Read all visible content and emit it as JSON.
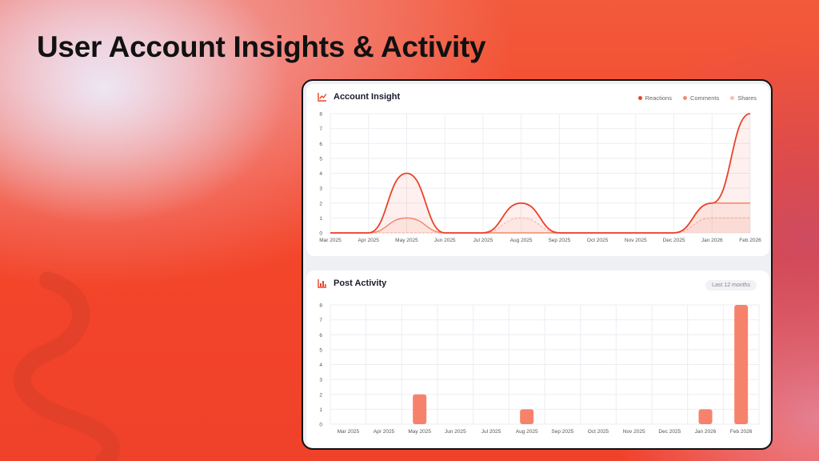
{
  "page": {
    "title": "User Account Insights & Activity"
  },
  "insight_card": {
    "title": "Account Insight",
    "icon": "line-chart-icon",
    "legend": [
      {
        "label": "Reactions",
        "color": "#e9432b"
      },
      {
        "label": "Comments",
        "color": "#f58a74"
      },
      {
        "label": "Shares",
        "color": "#f9c0b3"
      }
    ]
  },
  "activity_card": {
    "title": "Post Activity",
    "icon": "bar-chart-icon",
    "period": "Last 12 months"
  },
  "chart_data": [
    {
      "type": "area",
      "title": "Account Insight",
      "categories": [
        "Mar 2025",
        "Apr 2025",
        "May 2025",
        "Jun 2025",
        "Jul 2025",
        "Aug 2025",
        "Sep 2025",
        "Oct 2025",
        "Nov 2025",
        "Dec 2025",
        "Jan 2026",
        "Feb 2026"
      ],
      "yticks": [
        0,
        1,
        2,
        3,
        4,
        5,
        6,
        7,
        8
      ],
      "ylim": [
        0,
        8
      ],
      "grid": true,
      "legend_position": "top-right",
      "series": [
        {
          "name": "Reactions",
          "values": [
            0,
            0,
            4,
            0,
            0,
            2,
            0,
            0,
            0,
            0,
            2,
            8
          ],
          "color": "#e9432b"
        },
        {
          "name": "Comments",
          "values": [
            0,
            0,
            1,
            0,
            0,
            0,
            0,
            0,
            0,
            0,
            2,
            2
          ],
          "color": "#f58a74"
        },
        {
          "name": "Shares",
          "values": [
            0,
            0,
            0,
            0,
            0,
            1,
            0,
            0,
            0,
            0,
            1,
            1
          ],
          "color": "#f9c0b3"
        }
      ]
    },
    {
      "type": "bar",
      "title": "Post Activity",
      "categories": [
        "Mar 2025",
        "Apr 2025",
        "May 2025",
        "Jun 2025",
        "Jul 2025",
        "Aug 2025",
        "Sep 2025",
        "Oct 2025",
        "Nov 2025",
        "Dec 2025",
        "Jan 2026",
        "Feb 2026"
      ],
      "values": [
        0,
        0,
        2,
        0,
        0,
        1,
        0,
        0,
        0,
        0,
        1,
        8
      ],
      "yticks": [
        0,
        1,
        2,
        3,
        4,
        5,
        6,
        7,
        8
      ],
      "ylim": [
        0,
        8
      ],
      "grid": true,
      "color": "#f7826b"
    }
  ]
}
